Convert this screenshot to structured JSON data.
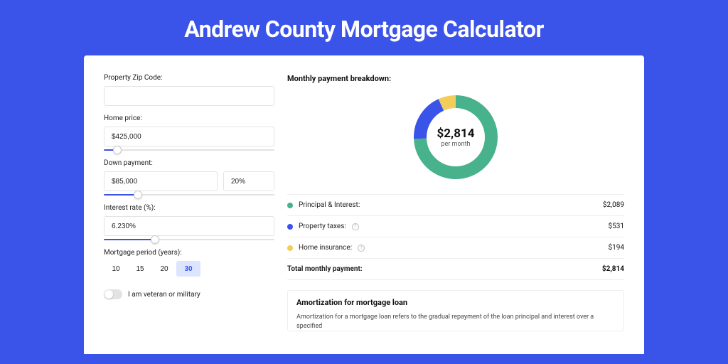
{
  "page": {
    "title": "Andrew County Mortgage Calculator",
    "background_color": "#3a53e8",
    "card_background": "#ffffff"
  },
  "form": {
    "zip": {
      "label": "Property Zip Code:",
      "value": ""
    },
    "home_price": {
      "label": "Home price:",
      "value": "$425,000",
      "slider_pct": 8
    },
    "down_payment": {
      "label": "Down payment:",
      "value": "$85,000",
      "pct": "20%",
      "slider_pct": 20
    },
    "interest_rate": {
      "label": "Interest rate (%):",
      "value": "6.230%",
      "slider_pct": 30
    },
    "mortgage_period": {
      "label": "Mortgage period (years):",
      "options": [
        "10",
        "15",
        "20",
        "30"
      ],
      "selected": "30"
    },
    "veteran": {
      "label": "I am veteran or military",
      "checked": false
    }
  },
  "breakdown": {
    "title": "Monthly payment breakdown:",
    "donut": {
      "value": "$2,814",
      "sub": "per month",
      "slices": [
        {
          "key": "principal_interest",
          "amount": 2089,
          "color": "#47b28b"
        },
        {
          "key": "property_taxes",
          "amount": 531,
          "color": "#3a53e8"
        },
        {
          "key": "home_insurance",
          "amount": 194,
          "color": "#f2cd5c"
        }
      ],
      "stroke_width": 18
    },
    "legend": [
      {
        "label": "Principal & Interest:",
        "value": "$2,089",
        "color": "#47b28b",
        "info": false
      },
      {
        "label": "Property taxes:",
        "value": "$531",
        "color": "#3a53e8",
        "info": true
      },
      {
        "label": "Home insurance:",
        "value": "$194",
        "color": "#f2cd5c",
        "info": true
      }
    ],
    "total": {
      "label": "Total monthly payment:",
      "value": "$2,814"
    }
  },
  "amortization": {
    "title": "Amortization for mortgage loan",
    "body": "Amortization for a mortgage loan refers to the gradual repayment of the loan principal and interest over a specified"
  }
}
